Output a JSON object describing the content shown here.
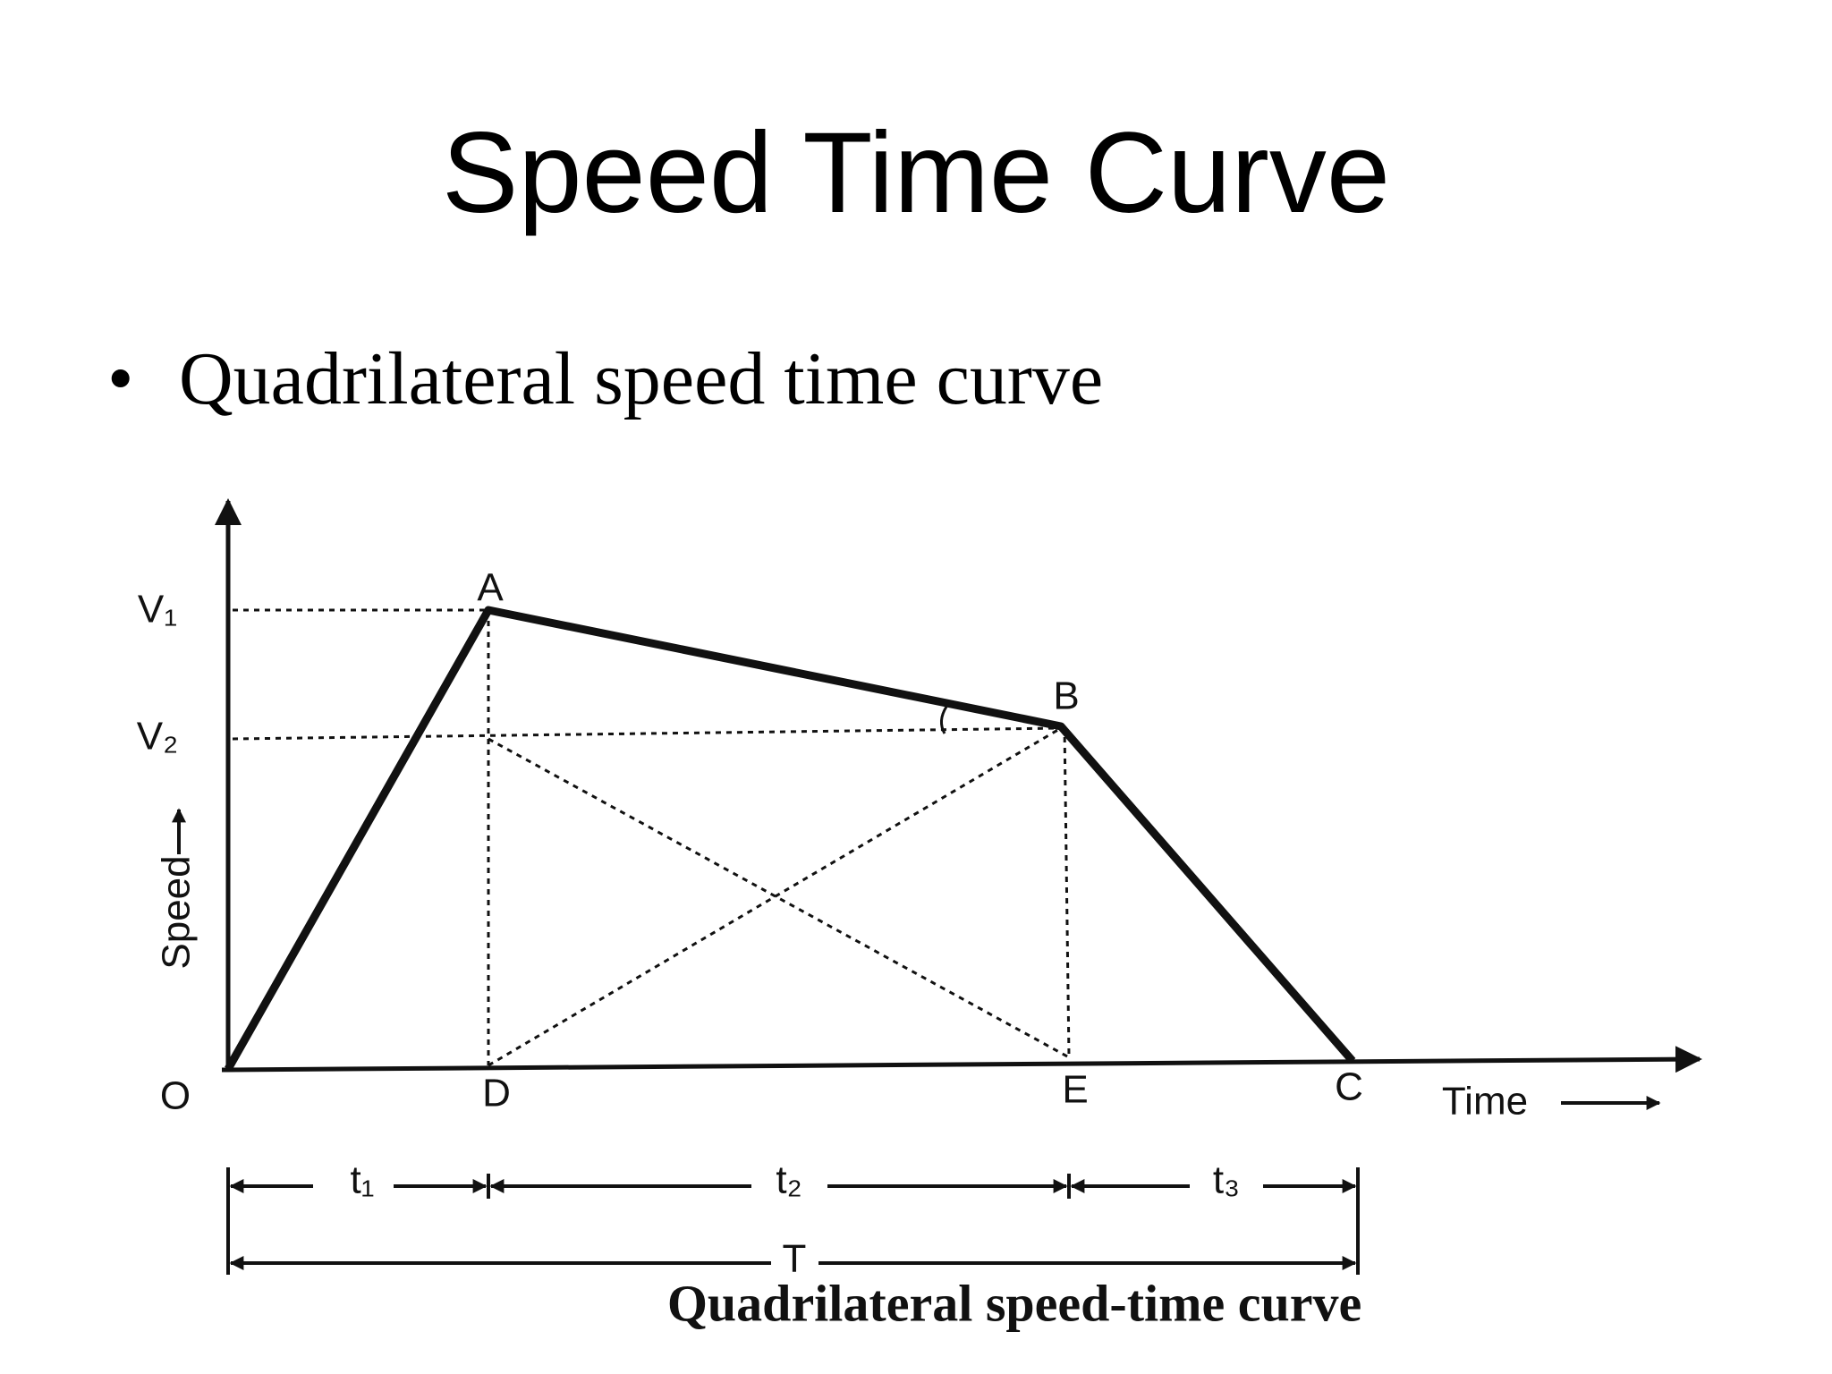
{
  "title": "Speed Time Curve",
  "bullet": "Quadrilateral speed time curve",
  "diagram": {
    "v1": "V₁",
    "v2": "V₂",
    "y_axis": "Speed",
    "x_axis": "Time",
    "points": {
      "o": "O",
      "a": "A",
      "b": "B",
      "c": "C",
      "d": "D",
      "e": "E"
    },
    "intervals": {
      "t1": "t₁",
      "t2": "t₂",
      "t3": "t₃",
      "total": "T"
    },
    "caption": "Quadrilateral speed-time curve"
  }
}
